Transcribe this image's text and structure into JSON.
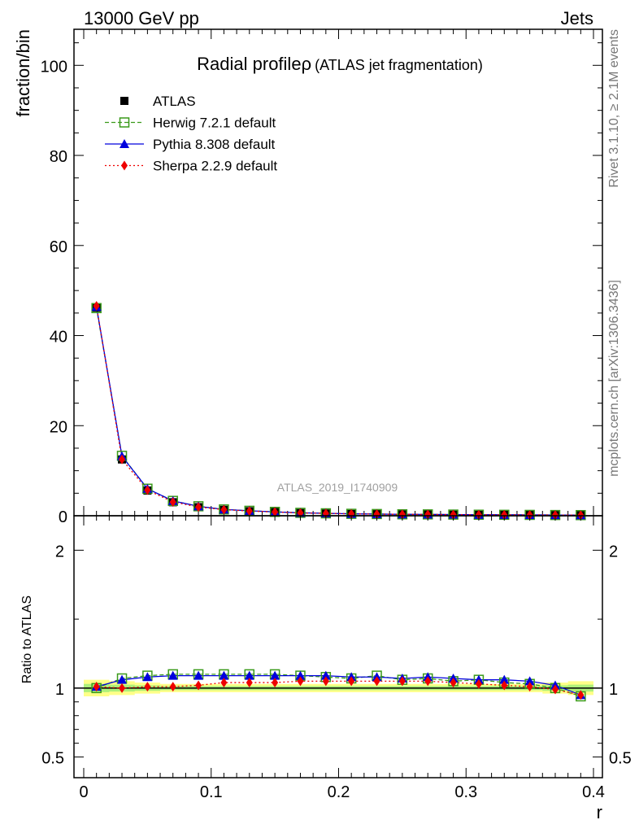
{
  "header": {
    "energy_label": "13000 GeV pp",
    "category_label": "Jets"
  },
  "side_labels": {
    "rivet": "Rivet 3.1.10, ≥ 2.1M events",
    "source": "mcplots.cern.ch [arXiv:1306.3436]"
  },
  "colors": {
    "atlas": "#000000",
    "herwig": "#3a9a1a",
    "pythia": "#0000dd",
    "sherpa": "#ee0000",
    "band_outer": "#ffff88",
    "band_inner": "#aef07a"
  },
  "chart_data": [
    {
      "type": "line",
      "panel": "main",
      "title": "Radial profile",
      "title_symbol": "ρ",
      "title_note": "(ATLAS jet fragmentation)",
      "watermark": "ATLAS_2019_I1740909",
      "ylabel": "fraction/bin",
      "xlabel": "",
      "xlim": [
        0,
        0.4
      ],
      "ylim": [
        0,
        108
      ],
      "yticks": [
        0,
        20,
        40,
        60,
        80,
        100
      ],
      "legend_placement": "top-left",
      "x": [
        0.01,
        0.03,
        0.05,
        0.07,
        0.09,
        0.11,
        0.13,
        0.15,
        0.17,
        0.19,
        0.21,
        0.23,
        0.25,
        0.27,
        0.29,
        0.31,
        0.33,
        0.35,
        0.37,
        0.39
      ],
      "series": [
        {
          "name": "ATLAS",
          "marker": "square",
          "values": [
            46.2,
            12.5,
            5.6,
            3.0,
            1.9,
            1.3,
            1.0,
            0.8,
            0.6,
            0.5,
            0.4,
            0.35,
            0.3,
            0.28,
            0.25,
            0.22,
            0.2,
            0.18,
            0.16,
            0.15
          ]
        },
        {
          "name": "Herwig 7.2.1 default",
          "marker": "open-square",
          "values": [
            46.1,
            13.3,
            6.0,
            3.3,
            2.1,
            1.4,
            1.1,
            0.86,
            0.65,
            0.54,
            0.43,
            0.38,
            0.32,
            0.3,
            0.26,
            0.23,
            0.21,
            0.19,
            0.16,
            0.14
          ]
        },
        {
          "name": "Pythia 8.308 default",
          "marker": "triangle",
          "values": [
            46.4,
            13.2,
            6.0,
            3.3,
            2.1,
            1.4,
            1.1,
            0.86,
            0.65,
            0.54,
            0.43,
            0.37,
            0.32,
            0.3,
            0.26,
            0.23,
            0.21,
            0.19,
            0.16,
            0.14
          ]
        },
        {
          "name": "Sherpa 2.2.9 default",
          "marker": "diamond",
          "values": [
            46.6,
            12.5,
            5.7,
            3.05,
            1.95,
            1.35,
            1.04,
            0.83,
            0.62,
            0.52,
            0.42,
            0.36,
            0.31,
            0.29,
            0.25,
            0.22,
            0.2,
            0.18,
            0.16,
            0.14
          ]
        }
      ]
    },
    {
      "type": "line",
      "panel": "ratio",
      "ylabel": "Ratio to ATLAS",
      "xlabel": "r",
      "xlim": [
        0,
        0.4
      ],
      "ylim": [
        0.35,
        2.25
      ],
      "yticks": [
        0.5,
        1,
        2
      ],
      "xticks": [
        0,
        0.1,
        0.2,
        0.3,
        0.4
      ],
      "x": [
        0.01,
        0.03,
        0.05,
        0.07,
        0.09,
        0.11,
        0.13,
        0.15,
        0.17,
        0.19,
        0.21,
        0.23,
        0.25,
        0.27,
        0.29,
        0.31,
        0.33,
        0.35,
        0.37,
        0.39
      ],
      "band": {
        "outer": [
          0.06,
          0.05,
          0.04,
          0.03,
          0.03,
          0.03,
          0.03,
          0.03,
          0.03,
          0.03,
          0.03,
          0.03,
          0.03,
          0.03,
          0.03,
          0.03,
          0.03,
          0.03,
          0.04,
          0.05
        ],
        "inner": [
          0.03,
          0.025,
          0.02,
          0.015,
          0.015,
          0.015,
          0.015,
          0.015,
          0.015,
          0.015,
          0.015,
          0.015,
          0.015,
          0.015,
          0.015,
          0.015,
          0.015,
          0.015,
          0.02,
          0.025
        ]
      },
      "series": [
        {
          "name": "Herwig 7.2.1 default",
          "values": [
            1.0,
            1.07,
            1.09,
            1.1,
            1.1,
            1.1,
            1.1,
            1.1,
            1.09,
            1.08,
            1.07,
            1.09,
            1.06,
            1.07,
            1.05,
            1.06,
            1.04,
            1.03,
            1.0,
            0.94
          ]
        },
        {
          "name": "Pythia 8.308 default",
          "values": [
            1.01,
            1.06,
            1.08,
            1.09,
            1.09,
            1.09,
            1.09,
            1.09,
            1.09,
            1.09,
            1.08,
            1.08,
            1.07,
            1.08,
            1.07,
            1.06,
            1.06,
            1.05,
            1.02,
            0.95
          ]
        },
        {
          "name": "Sherpa 2.2.9 default",
          "values": [
            1.01,
            1.0,
            1.01,
            1.01,
            1.02,
            1.04,
            1.04,
            1.04,
            1.05,
            1.05,
            1.05,
            1.05,
            1.05,
            1.05,
            1.04,
            1.03,
            1.02,
            1.01,
            0.99,
            0.95
          ]
        }
      ]
    }
  ]
}
